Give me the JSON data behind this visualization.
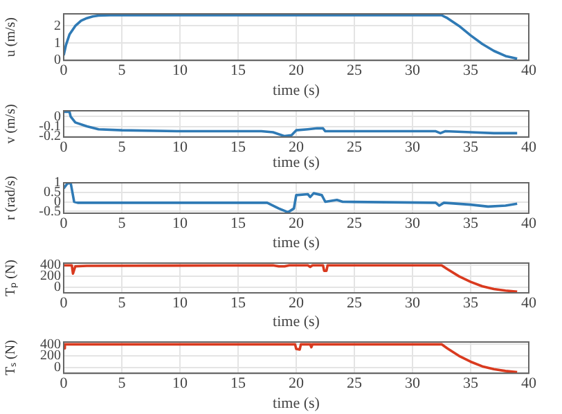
{
  "chart_data": [
    {
      "type": "line",
      "xlabel": "time (s)",
      "ylabel": "u (m/s)",
      "xlim": [
        0,
        40
      ],
      "xticks": [
        0,
        5,
        10,
        15,
        20,
        25,
        30,
        35,
        40
      ],
      "ylim": [
        0,
        2.7
      ],
      "yticks": [
        0,
        1,
        2
      ],
      "grid": true,
      "marker": "none",
      "series": [
        {
          "color": "#2f7ab5",
          "x": [
            0,
            0.2,
            0.5,
            1,
            1.5,
            2,
            2.5,
            3,
            4,
            5,
            32.5,
            33,
            34,
            35,
            36,
            37,
            38,
            39
          ],
          "values": [
            0.3,
            0.9,
            1.5,
            2.0,
            2.3,
            2.45,
            2.55,
            2.6,
            2.62,
            2.62,
            2.62,
            2.45,
            2.0,
            1.45,
            0.95,
            0.55,
            0.25,
            0.1
          ]
        }
      ]
    },
    {
      "type": "line",
      "xlabel": "time (s)",
      "ylabel": "v (m/s)",
      "xlim": [
        0,
        40
      ],
      "xticks": [
        0,
        5,
        10,
        15,
        20,
        25,
        30,
        35,
        40
      ],
      "ylim": [
        -0.21,
        0.06
      ],
      "yticks": [
        -0.2,
        -0.1,
        0
      ],
      "grid": true,
      "marker": "none",
      "series": [
        {
          "color": "#2f7ab5",
          "x": [
            0,
            0.5,
            0.6,
            1,
            2,
            3,
            5,
            10,
            17,
            18,
            19,
            19.6,
            20,
            21,
            21.8,
            22.3,
            22.5,
            24,
            32,
            32.4,
            32.8,
            35,
            37,
            39
          ],
          "values": [
            0.05,
            0.05,
            0.0,
            -0.06,
            -0.1,
            -0.13,
            -0.14,
            -0.15,
            -0.15,
            -0.16,
            -0.2,
            -0.19,
            -0.14,
            -0.13,
            -0.12,
            -0.12,
            -0.15,
            -0.15,
            -0.15,
            -0.17,
            -0.15,
            -0.16,
            -0.17,
            -0.17
          ]
        }
      ]
    },
    {
      "type": "line",
      "xlabel": "time (s)",
      "ylabel": "r (rad/s)",
      "xlim": [
        0,
        40
      ],
      "xticks": [
        0,
        5,
        10,
        15,
        20,
        25,
        30,
        35,
        40
      ],
      "ylim": [
        -0.6,
        1
      ],
      "yticks": [
        -0.5,
        0,
        0.5,
        1
      ],
      "grid": true,
      "marker": "none",
      "series": [
        {
          "color": "#2f7ab5",
          "x": [
            0,
            0.3,
            0.6,
            0.9,
            1.2,
            17.5,
            18.5,
            19.3,
            19.8,
            20,
            21,
            21.2,
            21.5,
            22.2,
            22.5,
            23.5,
            24,
            32,
            32.3,
            32.7,
            35,
            36.5,
            38,
            39
          ],
          "values": [
            0.7,
            0.95,
            1.0,
            0.0,
            -0.05,
            -0.05,
            -0.35,
            -0.55,
            -0.35,
            0.35,
            0.4,
            0.25,
            0.45,
            0.35,
            0.0,
            0.1,
            0.0,
            -0.05,
            -0.2,
            -0.05,
            -0.15,
            -0.25,
            -0.2,
            -0.1
          ]
        }
      ]
    },
    {
      "type": "line",
      "xlabel": "time (s)",
      "ylabel": "Tₚ (N)",
      "xlim": [
        0,
        40
      ],
      "xticks": [
        0,
        5,
        10,
        15,
        20,
        25,
        30,
        35,
        40
      ],
      "ylim": [
        -100,
        440
      ],
      "yticks": [
        0,
        200,
        400
      ],
      "grid": true,
      "marker": "none",
      "series": [
        {
          "color": "#d93a1f",
          "x": [
            0,
            0.7,
            0.8,
            1,
            2,
            18,
            18.5,
            19,
            19.4,
            21,
            21.2,
            21.4,
            22.3,
            22.4,
            22.6,
            22.7,
            32.5,
            33,
            34,
            35,
            36,
            37,
            38,
            39
          ],
          "values": [
            400,
            400,
            250,
            380,
            390,
            400,
            380,
            380,
            400,
            400,
            370,
            400,
            400,
            300,
            300,
            400,
            400,
            330,
            200,
            100,
            20,
            -30,
            -60,
            -80
          ]
        }
      ]
    },
    {
      "type": "line",
      "xlabel": "time (s)",
      "ylabel": "Tₛ (N)",
      "xlim": [
        0,
        40
      ],
      "xticks": [
        0,
        5,
        10,
        15,
        20,
        25,
        30,
        35,
        40
      ],
      "ylim": [
        -100,
        440
      ],
      "yticks": [
        0,
        200,
        400
      ],
      "grid": true,
      "marker": "none",
      "series": [
        {
          "color": "#d93a1f",
          "x": [
            0,
            0.1,
            19.9,
            20,
            20.3,
            20.4,
            21.2,
            21.3,
            21.4,
            32.5,
            33,
            34,
            35,
            36,
            37,
            38,
            39
          ],
          "values": [
            330,
            400,
            400,
            320,
            310,
            400,
            400,
            350,
            400,
            400,
            330,
            200,
            100,
            20,
            -30,
            -60,
            -80
          ]
        }
      ]
    }
  ]
}
